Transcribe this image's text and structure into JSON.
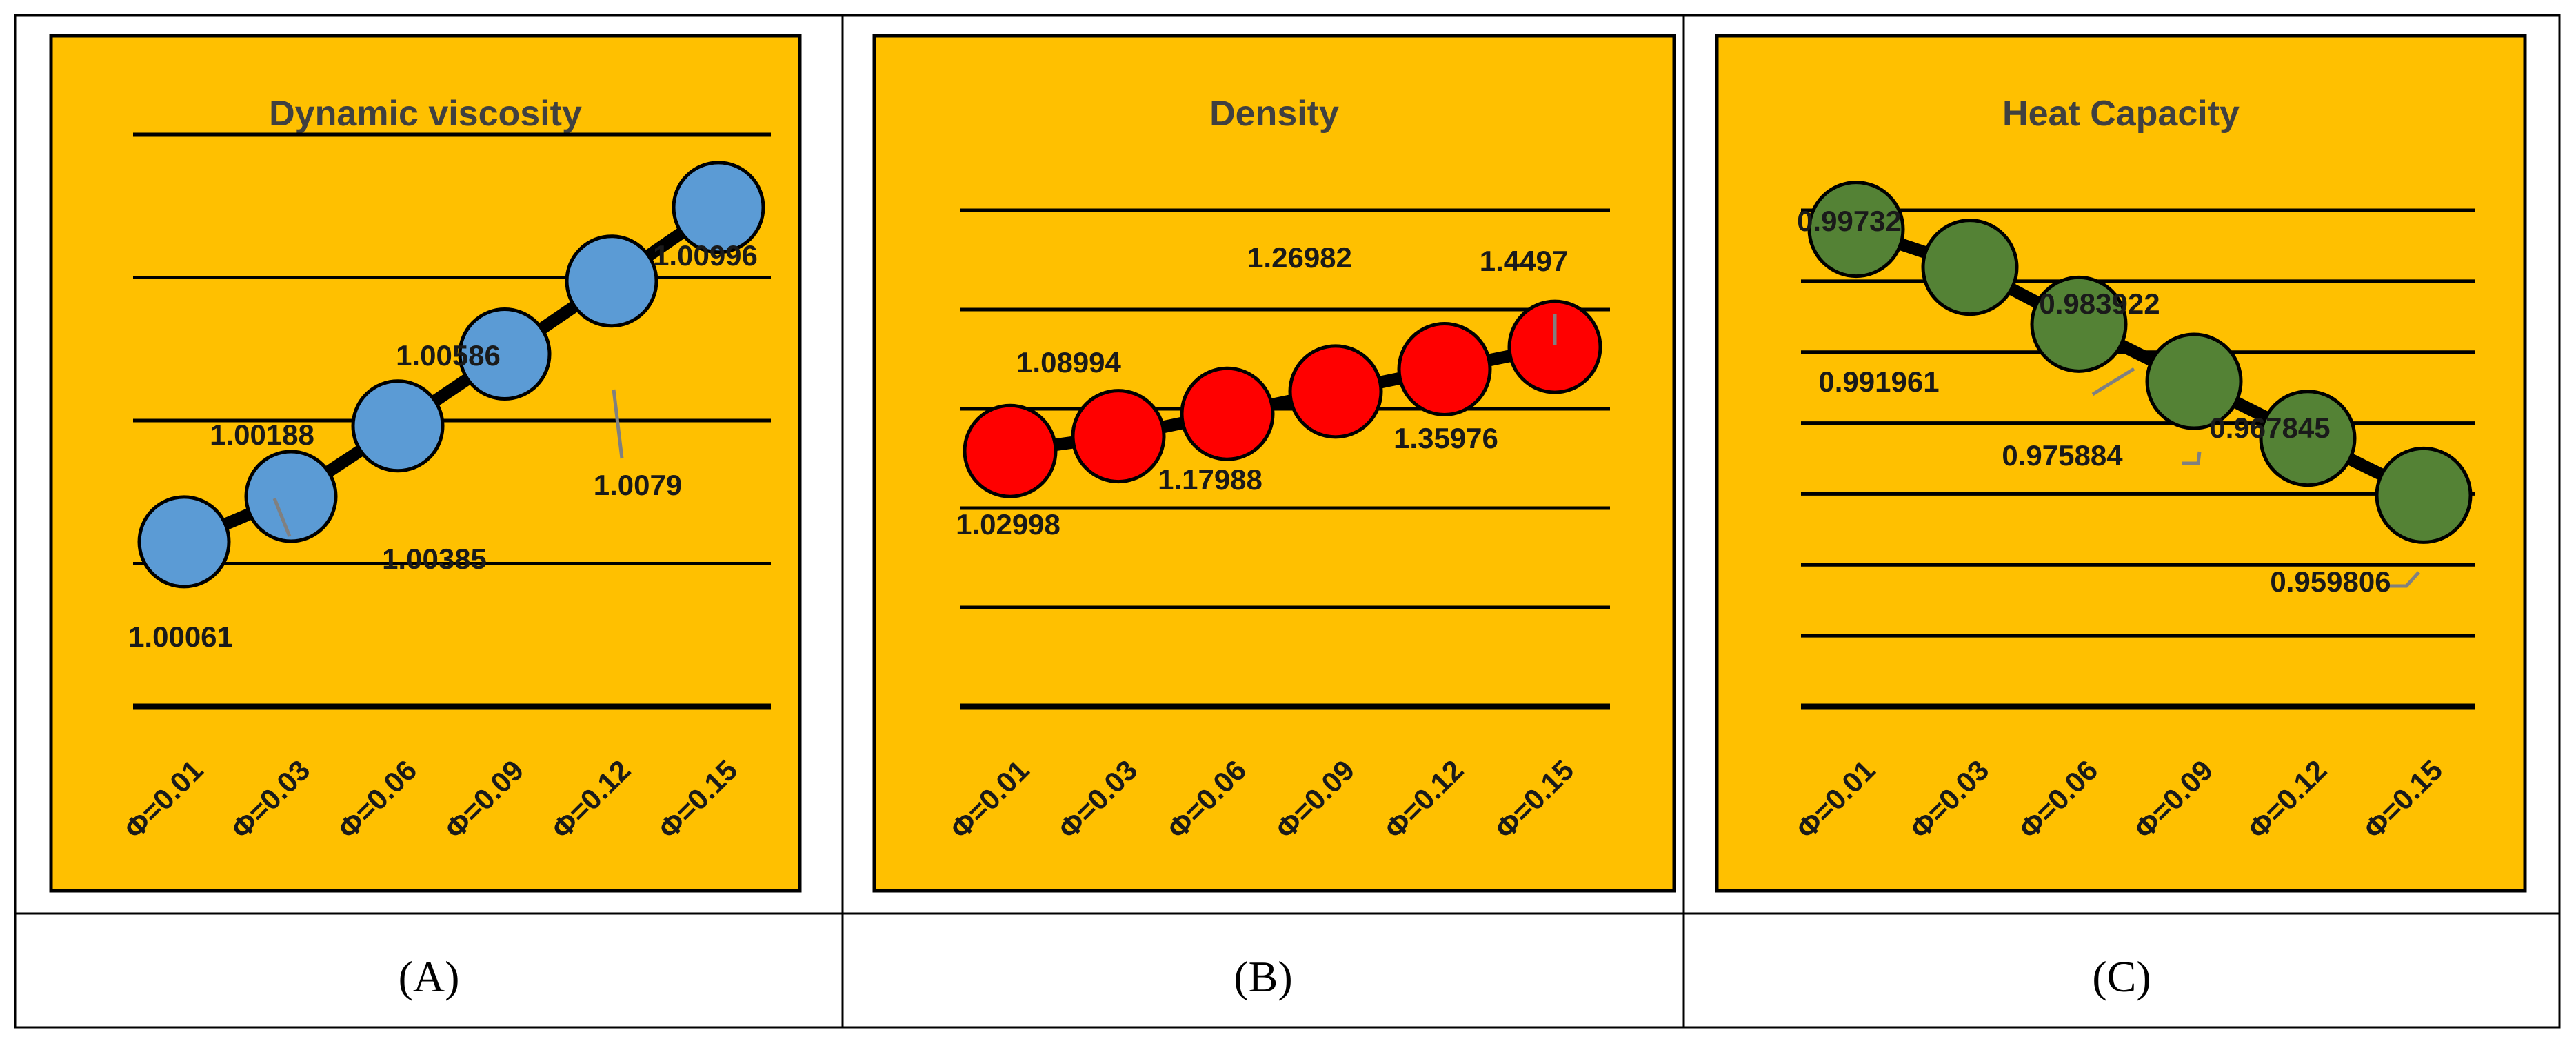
{
  "figure": {
    "panel_color": "#FFC000",
    "panel_border_color": "#000000",
    "gridline_color": "#000000",
    "connector_color": "#000000",
    "marker_outline_color": "#000000",
    "leader_color": "#808080",
    "title_color": "#404040"
  },
  "chart_data": [
    {
      "type": "line",
      "panel_label": "(A)",
      "title": "Dynamic viscosity",
      "categories": [
        "Φ=0.01",
        "Φ=0.03",
        "Φ=0.06",
        "Φ=0.09",
        "Φ=0.12",
        "Φ=0.15"
      ],
      "values": [
        1.00061,
        1.00188,
        1.00385,
        1.00586,
        1.0079,
        1.00996
      ],
      "data_labels": [
        "1.00061",
        "1.00188",
        "1.00385",
        "1.00586",
        "1.0079",
        "1.00996"
      ],
      "ylim": [
        0.996,
        1.012
      ],
      "gridlines": [
        0.996,
        1.0,
        1.004,
        1.008,
        1.012
      ],
      "marker_color": "#5B9BD5",
      "xlabel": "",
      "ylabel": ""
    },
    {
      "type": "line",
      "panel_label": "(B)",
      "title": "Density",
      "categories": [
        "Φ=0.01",
        "Φ=0.03",
        "Φ=0.06",
        "Φ=0.09",
        "Φ=0.12",
        "Φ=0.15"
      ],
      "values": [
        1.02998,
        1.08994,
        1.17988,
        1.26982,
        1.35976,
        1.4497
      ],
      "data_labels": [
        "1.02998",
        "1.08994",
        "1.17988",
        "1.26982",
        "1.35976",
        "1.4497"
      ],
      "ylim": [
        0,
        2
      ],
      "gridlines": [
        0,
        0.4,
        0.8,
        1.2,
        1.6,
        2.0
      ],
      "marker_color": "#FF0000",
      "xlabel": "",
      "ylabel": ""
    },
    {
      "type": "line",
      "panel_label": "(C)",
      "title": "Heat Capacity",
      "categories": [
        "Φ=0.01",
        "Φ=0.03",
        "Φ=0.06",
        "Φ=0.09",
        "Φ=0.12",
        "Φ=0.15"
      ],
      "values": [
        0.99732,
        0.991961,
        0.983922,
        0.975884,
        0.967845,
        0.959806
      ],
      "data_labels": [
        "0.99732",
        "0.991961",
        "0.983922",
        "0.975884",
        "0.967845",
        "0.959806"
      ],
      "ylim": [
        0.93,
        1.0
      ],
      "gridlines": [
        0.93,
        0.94,
        0.95,
        0.96,
        0.97,
        0.98,
        0.99,
        1.0
      ],
      "marker_color": "#548235",
      "xlabel": "",
      "ylabel": ""
    }
  ]
}
